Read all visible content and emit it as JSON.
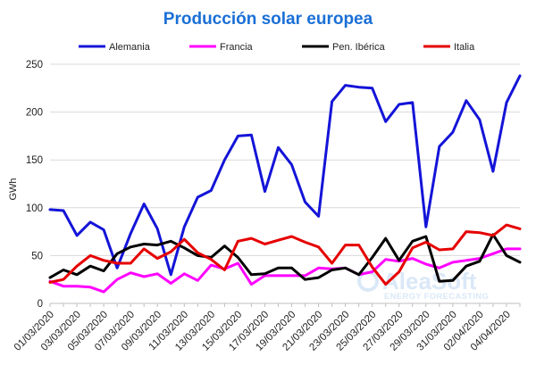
{
  "chart_data": {
    "type": "line",
    "title": "Producción solar europea",
    "ylabel": "GWh",
    "xlabel": "",
    "ylim": [
      0,
      250
    ],
    "yticks": [
      0,
      50,
      100,
      150,
      200,
      250
    ],
    "grid": "horizontal",
    "legend_position": "top",
    "x": [
      "01/03/2020",
      "02/03/2020",
      "03/03/2020",
      "04/03/2020",
      "05/03/2020",
      "06/03/2020",
      "07/03/2020",
      "08/03/2020",
      "09/03/2020",
      "10/03/2020",
      "11/03/2020",
      "12/03/2020",
      "13/03/2020",
      "14/03/2020",
      "15/03/2020",
      "16/03/2020",
      "17/03/2020",
      "18/03/2020",
      "19/03/2020",
      "20/03/2020",
      "21/03/2020",
      "22/03/2020",
      "23/03/2020",
      "24/03/2020",
      "25/03/2020",
      "26/03/2020",
      "27/03/2020",
      "28/03/2020",
      "29/03/2020",
      "30/03/2020",
      "31/03/2020",
      "01/04/2020",
      "02/04/2020",
      "03/04/2020",
      "04/04/2020",
      "05/04/2020"
    ],
    "xtick_labels": [
      "01/03/2020",
      "03/03/2020",
      "05/03/2020",
      "07/03/2020",
      "09/03/2020",
      "11/03/2020",
      "13/03/2020",
      "15/03/2020",
      "17/03/2020",
      "19/03/2020",
      "21/03/2020",
      "23/03/2020",
      "25/03/2020",
      "27/03/2020",
      "29/03/2020",
      "31/03/2020",
      "02/04/2020",
      "04/04/2020"
    ],
    "series": [
      {
        "name": "Alemania",
        "color": "#1414d8",
        "values": [
          98,
          97,
          71,
          85,
          77,
          37,
          73,
          104,
          78,
          30,
          80,
          111,
          118,
          150,
          175,
          176,
          117,
          163,
          145,
          106,
          91,
          211,
          228,
          226,
          225,
          190,
          208,
          210,
          80,
          164,
          179,
          212,
          192,
          138,
          210,
          238
        ]
      },
      {
        "name": "Francia",
        "color": "#ff00ff",
        "values": [
          23,
          18,
          18,
          17,
          12,
          25,
          32,
          28,
          31,
          21,
          31,
          24,
          40,
          36,
          42,
          20,
          29,
          29,
          29,
          29,
          37,
          36,
          37,
          30,
          33,
          46,
          44,
          47,
          41,
          37,
          43,
          45,
          47,
          52,
          57,
          57
        ]
      },
      {
        "name": "Pen. Ibérica",
        "color": "#000000",
        "values": [
          27,
          35,
          30,
          39,
          34,
          52,
          59,
          62,
          61,
          65,
          58,
          50,
          48,
          60,
          48,
          30,
          31,
          37,
          37,
          25,
          27,
          35,
          37,
          30,
          48,
          68,
          45,
          65,
          70,
          23,
          24,
          39,
          44,
          72,
          50,
          43
        ]
      },
      {
        "name": "Italia",
        "color": "#e60000",
        "values": [
          22,
          25,
          39,
          50,
          45,
          42,
          42,
          57,
          47,
          54,
          67,
          53,
          46,
          35,
          65,
          68,
          62,
          66,
          70,
          64,
          59,
          42,
          61,
          61,
          38,
          20,
          33,
          58,
          64,
          56,
          57,
          75,
          74,
          71,
          82,
          78
        ]
      }
    ]
  },
  "watermark": {
    "brand": "AleaSoft",
    "subtitle": "ENERGY FORECASTING"
  }
}
